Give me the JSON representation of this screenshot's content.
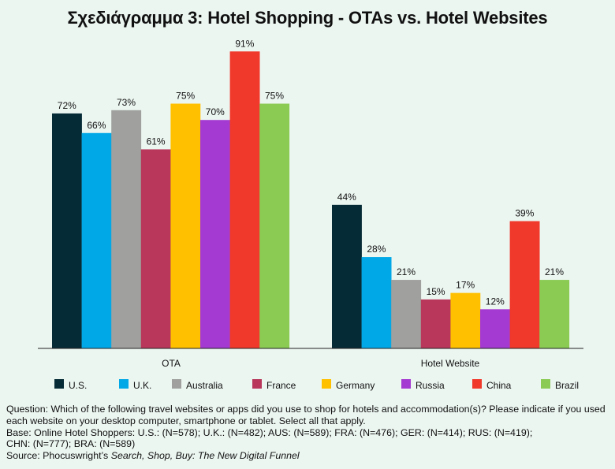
{
  "chart_data": {
    "type": "bar",
    "title": "Σχεδιάγραμμα 3: Hotel Shopping - OTAs vs. Hotel Websites",
    "categories": [
      "OTA",
      "Hotel Website"
    ],
    "series": [
      {
        "name": "U.S.",
        "color": "#052b36",
        "values": [
          72,
          44
        ]
      },
      {
        "name": "U.K.",
        "color": "#00a8e8",
        "values": [
          66,
          28
        ]
      },
      {
        "name": "Australia",
        "color": "#a0a19e",
        "values": [
          73,
          21
        ]
      },
      {
        "name": "France",
        "color": "#b8375b",
        "values": [
          61,
          15
        ]
      },
      {
        "name": "Germany",
        "color": "#ffc000",
        "values": [
          75,
          17
        ]
      },
      {
        "name": "Russia",
        "color": "#a43ad1",
        "values": [
          70,
          12
        ]
      },
      {
        "name": "China",
        "color": "#f0382b",
        "values": [
          91,
          39
        ]
      },
      {
        "name": "Brazil",
        "color": "#8bcb54",
        "values": [
          75,
          21
        ]
      }
    ],
    "value_suffix": "%",
    "ylim": [
      0,
      100
    ],
    "xlabel": "",
    "ylabel": "",
    "grid": false,
    "legend_position": "bottom"
  },
  "notes": {
    "question": "Question: Which of the following travel websites or apps did you use to shop for hotels and accommodation(s)? Please indicate if you used each website on your desktop computer, smartphone or tablet. Select all that apply.",
    "base_line1": "Base: Online Hotel Shoppers: U.S.: (N=578); U.K.: (N=482); AUS: (N=589); FRA: (N=476); GER: (N=414); RUS: (N=419);",
    "base_line2": "CHN: (N=777); BRA: (N=589)",
    "source_prefix": "Source: Phocuswright’s ",
    "source_title": "Search, Shop, Buy: The New Digital Funnel"
  }
}
